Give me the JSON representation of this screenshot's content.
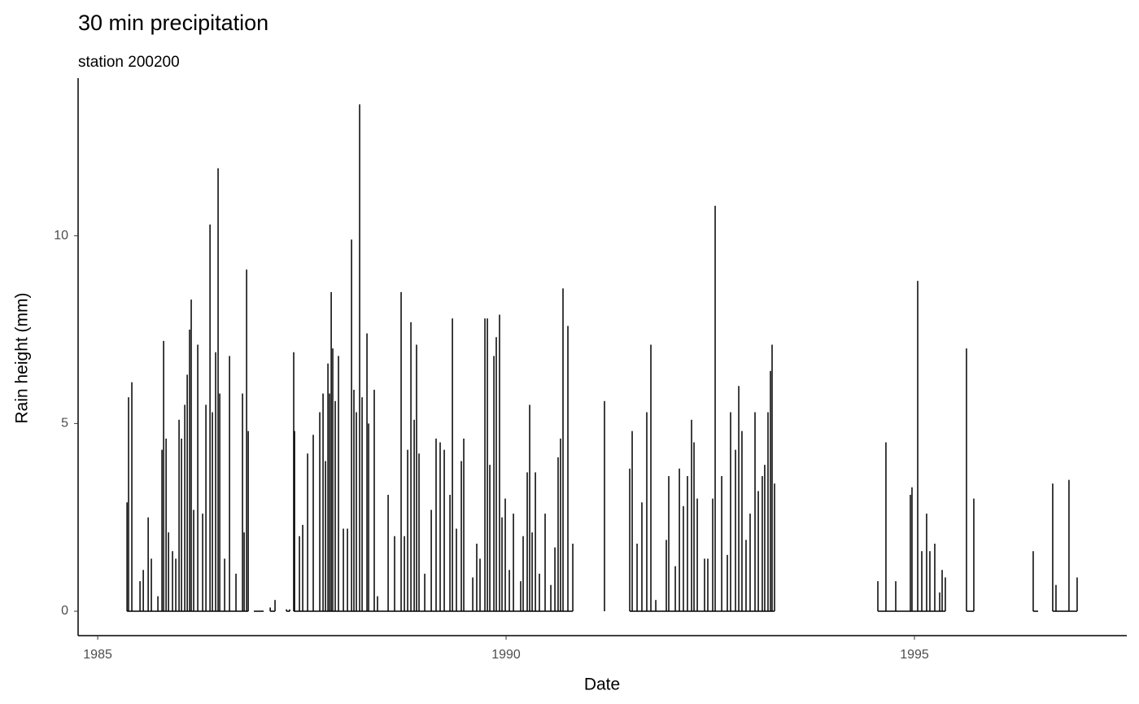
{
  "chart_data": {
    "type": "spike",
    "title": "30 min precipitation",
    "subtitle": "station 200200",
    "x_label": "Date",
    "y_label": "Rain height (mm)",
    "color": "#000000",
    "xlim": [
      1984.76,
      1997.6
    ],
    "xticks": [
      1985,
      1990,
      1995
    ],
    "ylim": [
      -0.65,
      14.2
    ],
    "yticks": [
      0,
      5,
      10
    ],
    "x": [
      1985.359,
      1985.378,
      1985.418,
      1985.518,
      1985.558,
      1985.618,
      1985.657,
      1985.737,
      1985.787,
      1985.807,
      1985.837,
      1985.867,
      1985.916,
      1985.956,
      1985.996,
      1986.026,
      1986.066,
      1986.096,
      1986.125,
      1986.145,
      1986.175,
      1986.225,
      1986.285,
      1986.325,
      1986.375,
      1986.404,
      1986.444,
      1986.474,
      1986.494,
      1986.554,
      1986.614,
      1986.693,
      1986.773,
      1986.793,
      1986.823,
      1986.843,
      null,
      1986.912,
      1987.032,
      null,
      1987.112,
      1987.171,
      null,
      1987.311,
      1987.351,
      null,
      1987.4,
      1987.41,
      1987.47,
      1987.51,
      1987.57,
      1987.639,
      1987.719,
      1987.759,
      1987.789,
      1987.819,
      1987.839,
      1987.859,
      1987.878,
      1987.908,
      1987.948,
      1988.008,
      1988.058,
      1988.108,
      1988.137,
      1988.167,
      1988.207,
      1988.237,
      1988.297,
      1988.317,
      1988.386,
      1988.426,
      1988.556,
      1988.635,
      1988.715,
      1988.755,
      1988.795,
      1988.835,
      1988.875,
      1988.904,
      1988.934,
      1989.004,
      1989.084,
      1989.143,
      1989.193,
      1989.243,
      1989.313,
      1989.343,
      1989.392,
      1989.452,
      1989.482,
      1989.592,
      1989.641,
      1989.681,
      1989.741,
      1989.771,
      1989.801,
      1989.851,
      1989.88,
      1989.92,
      1989.95,
      1989.99,
      1990.04,
      1990.09,
      1990.179,
      1990.209,
      1990.259,
      1990.289,
      1990.319,
      1990.359,
      1990.408,
      1990.478,
      1990.548,
      1990.598,
      1990.637,
      1990.667,
      1990.697,
      1990.757,
      1990.817,
      null,
      1991.205,
      null,
      1991.514,
      1991.544,
      1991.604,
      1991.663,
      1991.723,
      1991.773,
      1991.833,
      1991.962,
      1991.992,
      1992.072,
      1992.122,
      1992.171,
      1992.221,
      1992.271,
      1992.301,
      1992.341,
      1992.43,
      1992.47,
      1992.53,
      1992.56,
      1992.64,
      1992.709,
      1992.749,
      1992.809,
      1992.849,
      1992.888,
      1992.938,
      1992.988,
      1993.048,
      1993.088,
      1993.137,
      1993.167,
      1993.207,
      1993.237,
      1993.257,
      1993.287,
      null,
      1994.552,
      1994.651,
      1994.771,
      1994.95,
      1994.97,
      1995.04,
      1995.09,
      1995.149,
      1995.189,
      1995.249,
      1995.309,
      1995.339,
      1995.378,
      null,
      1995.637,
      1995.727,
      null,
      1996.454,
      1996.514,
      null,
      1996.693,
      1996.733,
      1996.892,
      1996.992
    ],
    "values": [
      2.9,
      5.7,
      6.1,
      0.8,
      1.1,
      2.5,
      1.4,
      0.4,
      4.3,
      7.2,
      4.6,
      2.1,
      1.6,
      1.4,
      5.1,
      4.6,
      5.5,
      6.3,
      7.5,
      8.3,
      2.7,
      7.1,
      2.6,
      5.5,
      10.3,
      5.3,
      6.9,
      11.8,
      5.8,
      1.4,
      6.8,
      1.0,
      5.8,
      2.1,
      9.1,
      4.8,
      null,
      0,
      0,
      null,
      0.1,
      0.3,
      null,
      0.05,
      0.05,
      null,
      6.9,
      4.8,
      2.0,
      2.3,
      4.2,
      4.7,
      5.3,
      5.8,
      4.0,
      6.6,
      5.8,
      8.5,
      7.0,
      5.6,
      6.8,
      2.2,
      2.2,
      9.9,
      5.9,
      5.3,
      13.5,
      5.7,
      7.4,
      5.0,
      5.9,
      0.4,
      3.1,
      2.0,
      8.5,
      2.0,
      4.3,
      7.7,
      5.1,
      7.1,
      4.2,
      1.0,
      2.7,
      4.6,
      4.5,
      4.3,
      3.1,
      7.8,
      2.2,
      4.0,
      4.6,
      0.9,
      1.8,
      1.4,
      7.8,
      7.8,
      3.9,
      6.8,
      7.3,
      7.9,
      2.5,
      3.0,
      1.1,
      2.6,
      0.8,
      2.0,
      3.7,
      5.5,
      2.1,
      3.7,
      1.0,
      2.6,
      0.7,
      1.7,
      4.1,
      4.6,
      8.6,
      7.6,
      1.8,
      null,
      5.6,
      null,
      3.8,
      4.8,
      1.8,
      2.9,
      5.3,
      7.1,
      0.3,
      1.9,
      3.6,
      1.2,
      3.8,
      2.8,
      3.6,
      5.1,
      4.5,
      3.0,
      1.4,
      1.4,
      3.0,
      10.8,
      3.6,
      1.5,
      5.3,
      4.3,
      6.0,
      4.8,
      1.9,
      2.6,
      5.3,
      3.2,
      3.6,
      3.9,
      5.3,
      6.4,
      7.1,
      3.4,
      null,
      0.8,
      4.5,
      0.8,
      3.1,
      3.3,
      8.8,
      1.6,
      2.6,
      1.6,
      1.8,
      0.5,
      1.1,
      0.9,
      null,
      7.0,
      3.0,
      null,
      1.6,
      0,
      null,
      3.4,
      0.7,
      3.5,
      0.9
    ]
  }
}
